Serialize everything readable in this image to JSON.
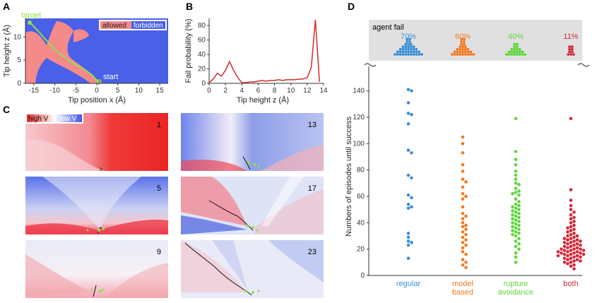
{
  "panels": {
    "a": {
      "label": "A",
      "xlabel": "Tip position x (Å)",
      "ylabel": "Tip height z (Å)",
      "xticks": [
        "-15",
        "-10",
        "-5",
        "0",
        "5",
        "10",
        "15"
      ],
      "yticks": [
        "0",
        "5",
        "10"
      ],
      "legend_allowed": "allowed",
      "legend_forbidden": "forbidden",
      "target_label": "target",
      "start_label": "start",
      "colors": {
        "allowed": "#f48a8a",
        "forbidden": "#4a60e8",
        "path": "#8fe04a"
      }
    },
    "b": {
      "label": "B",
      "xlabel": "Tip height z (Å)",
      "ylabel": "Fail probability (%)",
      "color": "#d42a2a"
    },
    "c": {
      "label": "C",
      "legend_high": "high V",
      "legend_low": "low V",
      "steps": [
        "1",
        "13",
        "5",
        "17",
        "9",
        "23"
      ]
    },
    "d": {
      "label": "D",
      "agent_fail_label": "agent fail",
      "ylabel": "Numbers of episodes until success"
    }
  },
  "chart_data": [
    {
      "type": "line",
      "panel": "B",
      "title": "",
      "xlabel": "Tip height z (Å)",
      "ylabel": "Fail probability (%)",
      "xlim": [
        0,
        14
      ],
      "ylim": [
        0,
        90
      ],
      "xticks": [
        0,
        2,
        4,
        6,
        8,
        10,
        12,
        14
      ],
      "yticks": [
        0,
        20,
        40,
        60,
        80
      ],
      "x": [
        0,
        0.5,
        1,
        1.5,
        2,
        2.5,
        3,
        3.5,
        4,
        4.5,
        5,
        5.5,
        6,
        6.5,
        7,
        7.5,
        8,
        8.5,
        9,
        9.5,
        10,
        10.5,
        11,
        11.5,
        12,
        12.5,
        13,
        13.5
      ],
      "y": [
        1,
        6,
        14,
        10,
        18,
        30,
        18,
        8,
        1,
        1,
        2,
        2,
        3,
        4,
        3,
        4,
        4,
        5,
        4,
        5,
        5,
        5,
        6,
        6,
        8,
        22,
        88,
        2
      ]
    },
    {
      "type": "scatter",
      "panel": "D",
      "title": "",
      "ylabel": "Numbers of episodes until success",
      "ylim": [
        0,
        150
      ],
      "yticks": [
        0,
        20,
        40,
        60,
        80,
        100,
        120,
        140
      ],
      "categories": [
        "regular",
        "model\nbased",
        "rupture\navoidance",
        "both"
      ],
      "fail_rates": [
        "70%",
        "60%",
        "40%",
        "11%"
      ],
      "series": [
        {
          "name": "regular",
          "color": "#3a8fd6",
          "values": [
            141,
            140,
            131,
            123,
            122,
            115,
            95,
            93,
            76,
            74,
            61,
            59,
            54,
            52,
            51,
            32,
            29,
            26,
            25,
            23,
            13
          ]
        },
        {
          "name": "model based",
          "color": "#f07a1e",
          "values": [
            105,
            100,
            93,
            84,
            79,
            73,
            71,
            67,
            62,
            60,
            58,
            52,
            47,
            45,
            43,
            40,
            38,
            37,
            35,
            33,
            31,
            29,
            27,
            25,
            23,
            21,
            18,
            16,
            12,
            10,
            8,
            6
          ]
        },
        {
          "name": "rupture avoidance",
          "color": "#5fd63a",
          "values": [
            119,
            94,
            88,
            84,
            79,
            76,
            73,
            70,
            69,
            66,
            64,
            63,
            62,
            61,
            58,
            56,
            54,
            53,
            52,
            51,
            50,
            49,
            48,
            47,
            46,
            45,
            44,
            43,
            42,
            41,
            40,
            39,
            38,
            37,
            36,
            35,
            34,
            33,
            32,
            31,
            30,
            28,
            26,
            24,
            22,
            20,
            17,
            14,
            10
          ]
        },
        {
          "name": "both",
          "color": "#d42a3a",
          "values": [
            119,
            65,
            57,
            53,
            50,
            48,
            46,
            44,
            43,
            41,
            40,
            38,
            37,
            36,
            35,
            34,
            33,
            32,
            31,
            30,
            30,
            29,
            28,
            28,
            27,
            27,
            26,
            26,
            25,
            25,
            24,
            24,
            23,
            23,
            22,
            22,
            21,
            21,
            20,
            20,
            20,
            19,
            19,
            19,
            18,
            18,
            18,
            17,
            17,
            17,
            16,
            16,
            16,
            15,
            15,
            15,
            14,
            14,
            13,
            13,
            12,
            12,
            11,
            11,
            10,
            10,
            9,
            8,
            7,
            5
          ]
        }
      ]
    }
  ]
}
